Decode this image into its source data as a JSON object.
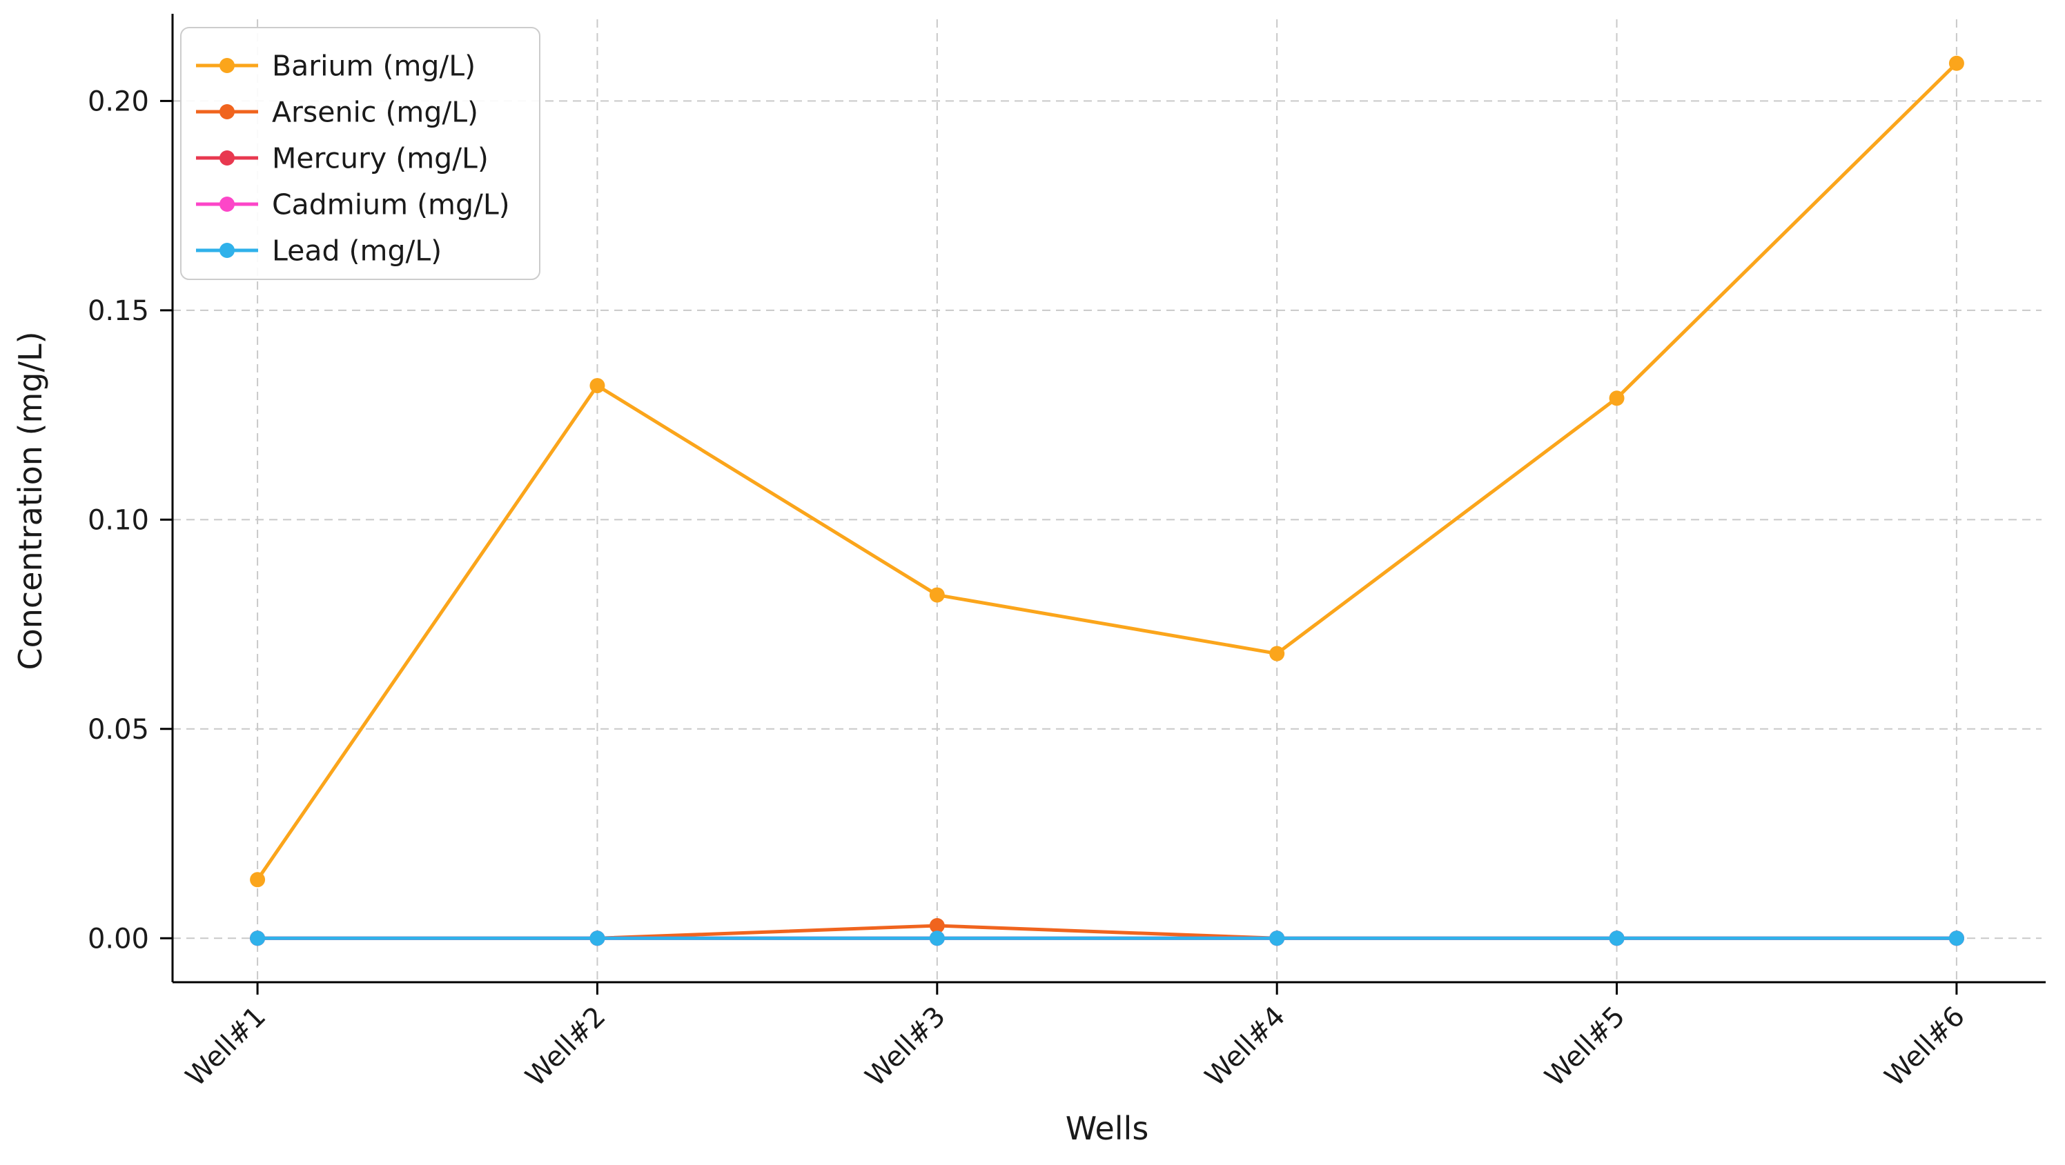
{
  "chart_data": {
    "type": "line",
    "title": "",
    "xlabel": "Wells",
    "ylabel": "Concentration (mg/L)",
    "categories": [
      "Well#1",
      "Well#2",
      "Well#3",
      "Well#4",
      "Well#5",
      "Well#6"
    ],
    "series": [
      {
        "name": "Barium (mg/L)",
        "color": "#FBA51B",
        "values": [
          0.014,
          0.132,
          0.082,
          0.068,
          0.129,
          0.209
        ]
      },
      {
        "name": "Arsenic (mg/L)",
        "color": "#F0641E",
        "values": [
          0.0,
          0.0,
          0.003,
          0.0,
          0.0,
          0.0
        ]
      },
      {
        "name": "Mercury (mg/L)",
        "color": "#E8384F",
        "values": [
          0.0,
          0.0,
          0.0,
          0.0,
          0.0,
          0.0
        ]
      },
      {
        "name": "Cadmium (mg/L)",
        "color": "#FC46C8",
        "values": [
          0.0,
          0.0,
          0.0,
          0.0,
          0.0,
          0.0
        ]
      },
      {
        "name": "Lead (mg/L)",
        "color": "#2FB1EA",
        "values": [
          0.0,
          0.0,
          0.0,
          0.0,
          0.0,
          0.0
        ]
      }
    ],
    "yticks": [
      0.0,
      0.05,
      0.1,
      0.15,
      0.2
    ],
    "ylim": [
      -0.0105,
      0.2195
    ],
    "grid": "dashed",
    "grid_color": "#c9c9c9",
    "legend_position": "upper left",
    "axis_color": "#000000"
  }
}
